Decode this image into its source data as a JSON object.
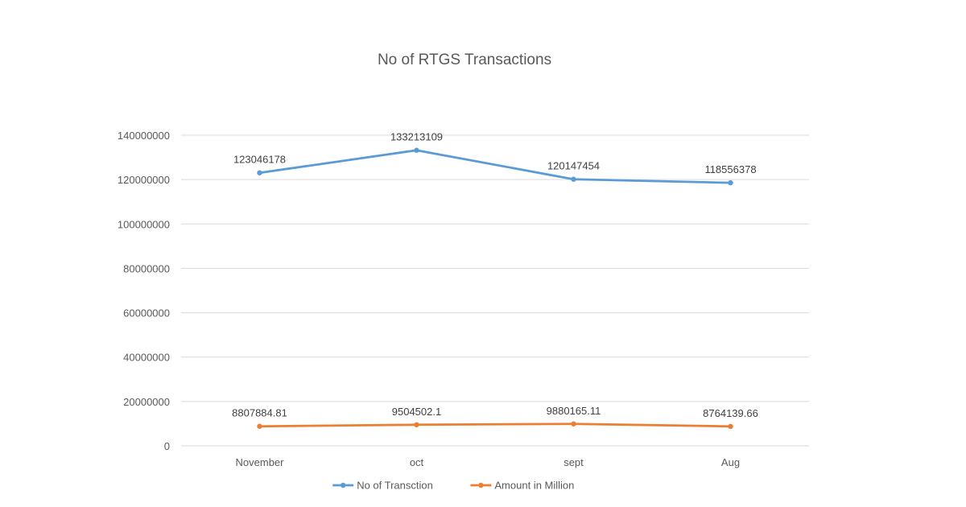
{
  "chart_data": {
    "type": "line",
    "title": "No of RTGS Transactions",
    "categories": [
      "November",
      "oct",
      "sept",
      "Aug"
    ],
    "series": [
      {
        "name": "No of Transction",
        "color": "#5b9bd5",
        "values": [
          123046178,
          133213109,
          120147454,
          118556378
        ],
        "labels": [
          "123046178",
          "133213109",
          "120147454",
          "118556378"
        ]
      },
      {
        "name": "Amount in Million",
        "color": "#ed7d31",
        "values": [
          8807884.81,
          9504502.1,
          9880165.11,
          8764139.66
        ],
        "labels": [
          "8807884.81",
          "9504502.1",
          "9880165.11",
          "8764139.66"
        ]
      }
    ],
    "ylim": [
      0,
      140000000
    ],
    "yticks": [
      "0",
      "20000000",
      "40000000",
      "60000000",
      "80000000",
      "100000000",
      "120000000",
      "140000000"
    ],
    "xlabel": "",
    "ylabel": "",
    "grid": true,
    "legend": "bottom"
  }
}
